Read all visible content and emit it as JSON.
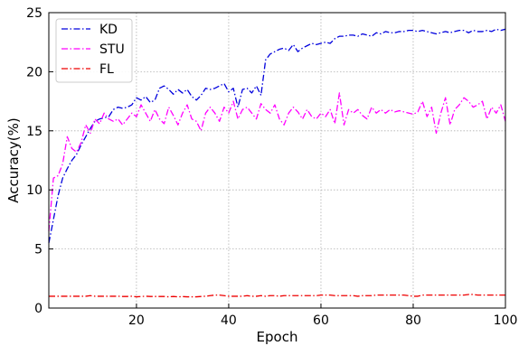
{
  "chart_data": {
    "type": "line",
    "title": "",
    "xlabel": "Epoch",
    "ylabel": "Accuracy(%)",
    "xlim": [
      1,
      100
    ],
    "ylim": [
      0,
      25
    ],
    "xticks": [
      20,
      40,
      60,
      80,
      100
    ],
    "yticks": [
      0,
      5,
      10,
      15,
      20,
      25
    ],
    "grid": true,
    "legend_position": "top-left",
    "x": [
      1,
      2,
      3,
      4,
      5,
      6,
      7,
      8,
      9,
      10,
      11,
      12,
      13,
      14,
      15,
      16,
      17,
      18,
      19,
      20,
      21,
      22,
      23,
      24,
      25,
      26,
      27,
      28,
      29,
      30,
      31,
      32,
      33,
      34,
      35,
      36,
      37,
      38,
      39,
      40,
      41,
      42,
      43,
      44,
      45,
      46,
      47,
      48,
      49,
      50,
      51,
      52,
      53,
      54,
      55,
      56,
      57,
      58,
      59,
      60,
      61,
      62,
      63,
      64,
      65,
      66,
      67,
      68,
      69,
      70,
      71,
      72,
      73,
      74,
      75,
      76,
      77,
      78,
      79,
      80,
      81,
      82,
      83,
      84,
      85,
      86,
      87,
      88,
      89,
      90,
      91,
      92,
      93,
      94,
      95,
      96,
      97,
      98,
      99,
      100
    ],
    "series": [
      {
        "name": "KD",
        "color": "#0000dd",
        "dash": "dashdot",
        "values": [
          5.5,
          7.5,
          9.5,
          11.0,
          11.8,
          12.5,
          13.0,
          13.8,
          14.5,
          15.2,
          15.8,
          16.0,
          16.1,
          16.2,
          16.8,
          17.0,
          16.9,
          17.0,
          17.2,
          17.8,
          17.6,
          17.9,
          17.4,
          17.6,
          18.6,
          18.8,
          18.5,
          18.1,
          18.5,
          18.2,
          18.5,
          17.9,
          17.6,
          18.0,
          18.6,
          18.5,
          18.6,
          18.8,
          19.0,
          18.3,
          18.6,
          17.0,
          18.5,
          18.6,
          18.2,
          18.8,
          18.0,
          21.0,
          21.5,
          21.7,
          21.9,
          22.0,
          21.8,
          22.3,
          21.7,
          22.0,
          22.2,
          22.4,
          22.3,
          22.4,
          22.5,
          22.4,
          22.8,
          23.0,
          23.0,
          23.1,
          23.1,
          23.0,
          23.2,
          23.1,
          23.0,
          23.3,
          23.2,
          23.4,
          23.3,
          23.3,
          23.4,
          23.4,
          23.5,
          23.5,
          23.4,
          23.5,
          23.4,
          23.3,
          23.2,
          23.3,
          23.4,
          23.3,
          23.4,
          23.5,
          23.5,
          23.3,
          23.5,
          23.4,
          23.4,
          23.5,
          23.4,
          23.6,
          23.5,
          23.6
        ]
      },
      {
        "name": "STU",
        "color": "#ff00ff",
        "dash": "dashdot",
        "values": [
          6.5,
          11.0,
          11.2,
          12.2,
          14.5,
          13.5,
          13.2,
          14.0,
          15.5,
          14.8,
          16.0,
          15.6,
          16.5,
          16.0,
          15.8,
          16.0,
          15.5,
          16.0,
          16.5,
          16.2,
          17.2,
          16.5,
          15.8,
          16.8,
          16.0,
          15.6,
          17.0,
          16.3,
          15.5,
          16.5,
          17.2,
          16.0,
          15.8,
          15.0,
          16.5,
          17.0,
          16.5,
          15.8,
          17.0,
          16.5,
          17.5,
          16.0,
          16.8,
          17.0,
          16.5,
          16.0,
          17.3,
          16.8,
          16.5,
          17.2,
          16.0,
          15.5,
          16.5,
          17.0,
          16.6,
          16.0,
          16.8,
          16.2,
          16.0,
          16.5,
          16.2,
          16.8,
          15.6,
          18.2,
          15.5,
          16.8,
          16.5,
          16.8,
          16.3,
          16.0,
          17.0,
          16.5,
          16.8,
          16.5,
          16.8,
          16.6,
          16.7,
          16.6,
          16.5,
          16.4,
          16.6,
          17.5,
          16.2,
          17.0,
          14.8,
          16.5,
          17.8,
          15.5,
          16.8,
          17.2,
          17.8,
          17.5,
          17.0,
          17.2,
          17.5,
          16.0,
          17.0,
          16.5,
          17.2,
          15.8
        ]
      },
      {
        "name": "FL",
        "color": "#ee0000",
        "dash": "dashdot",
        "values": [
          1.0,
          1.0,
          1.0,
          1.0,
          1.0,
          1.0,
          1.0,
          1.0,
          1.0,
          1.05,
          1.0,
          1.0,
          1.0,
          1.0,
          1.0,
          1.0,
          0.98,
          0.98,
          1.0,
          0.95,
          0.98,
          1.0,
          0.98,
          0.98,
          0.98,
          0.98,
          0.95,
          0.98,
          0.95,
          0.97,
          0.95,
          0.95,
          0.95,
          0.98,
          1.0,
          1.05,
          1.1,
          1.1,
          1.05,
          1.0,
          1.0,
          1.0,
          1.0,
          1.05,
          1.0,
          1.0,
          1.05,
          1.0,
          1.05,
          1.05,
          1.0,
          1.05,
          1.05,
          1.05,
          1.05,
          1.05,
          1.05,
          1.05,
          1.05,
          1.1,
          1.1,
          1.1,
          1.05,
          1.05,
          1.05,
          1.05,
          1.05,
          1.0,
          1.05,
          1.05,
          1.05,
          1.1,
          1.1,
          1.1,
          1.1,
          1.1,
          1.1,
          1.1,
          1.05,
          1.0,
          1.0,
          1.1,
          1.1,
          1.1,
          1.1,
          1.1,
          1.1,
          1.1,
          1.1,
          1.1,
          1.1,
          1.15,
          1.15,
          1.1,
          1.1,
          1.1,
          1.1,
          1.1,
          1.1,
          1.1
        ]
      }
    ]
  }
}
